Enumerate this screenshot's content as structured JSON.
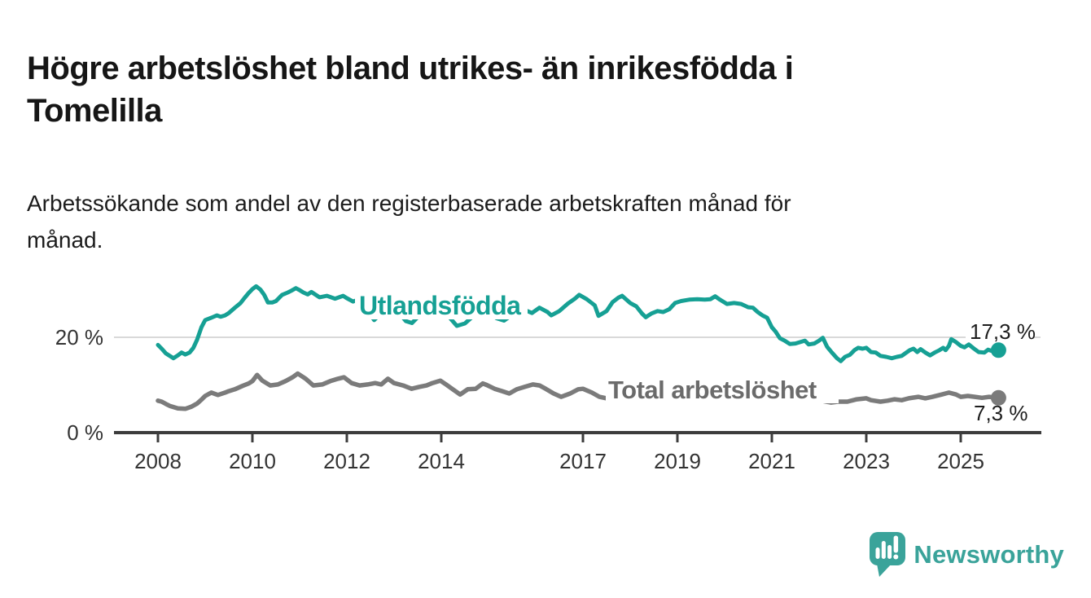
{
  "header": {
    "title_lines": [
      "Högre arbetslöshet bland utrikes- än inrikesfödda i",
      "Tomelilla"
    ],
    "subtitle_lines": [
      "Arbetssökande som andel av den registerbaserade arbetskraften månad för",
      "månad."
    ]
  },
  "chart_data": {
    "type": "line",
    "title": "Högre arbetslöshet bland utrikes- än inrikesfödda i Tomelilla",
    "subtitle": "Arbetssökande som andel av den registerbaserade arbetskraften månad för månad.",
    "unit": "%",
    "grid": "single-horizontal-gridline-at-20",
    "legend_position": "inline-labels-on-lines",
    "x_ticks": [
      "2008",
      "2010",
      "2012",
      "2014",
      "2017",
      "2019",
      "2021",
      "2023",
      "2025"
    ],
    "y_ticks": [
      {
        "v": 0,
        "label": "0 %"
      },
      {
        "v": 20,
        "label": "20 %"
      }
    ],
    "x_range": [
      2008.0,
      2025.8
    ],
    "ylim": [
      0,
      33
    ],
    "colors": {
      "axis": "#3c3c3c",
      "grid": "#d9d9d9",
      "tick_text": "#333333",
      "value_text": "#1d1d1d"
    },
    "series": [
      {
        "id": "utlandsfodda",
        "name": "Utlandsfödda",
        "color": "#16a094",
        "label_color": "#16a094",
        "end_value": 17.3,
        "end_label": "17,3 %",
        "points": [
          [
            2008.0,
            18.4
          ],
          [
            2008.08,
            17.6
          ],
          [
            2008.17,
            16.6
          ],
          [
            2008.33,
            15.6
          ],
          [
            2008.42,
            16.2
          ],
          [
            2008.5,
            16.8
          ],
          [
            2008.58,
            16.4
          ],
          [
            2008.67,
            16.8
          ],
          [
            2008.75,
            17.8
          ],
          [
            2008.83,
            19.5
          ],
          [
            2008.92,
            22.1
          ],
          [
            2009.0,
            23.6
          ],
          [
            2009.13,
            24.1
          ],
          [
            2009.25,
            24.6
          ],
          [
            2009.33,
            24.3
          ],
          [
            2009.42,
            24.6
          ],
          [
            2009.5,
            25.1
          ],
          [
            2009.63,
            26.2
          ],
          [
            2009.75,
            27.2
          ],
          [
            2009.83,
            28.2
          ],
          [
            2009.92,
            29.3
          ],
          [
            2010.0,
            30.1
          ],
          [
            2010.08,
            30.7
          ],
          [
            2010.17,
            30.0
          ],
          [
            2010.25,
            28.9
          ],
          [
            2010.33,
            27.3
          ],
          [
            2010.42,
            27.3
          ],
          [
            2010.5,
            27.6
          ],
          [
            2010.63,
            28.9
          ],
          [
            2010.75,
            29.4
          ],
          [
            2010.83,
            29.8
          ],
          [
            2010.92,
            30.3
          ],
          [
            2011.0,
            29.9
          ],
          [
            2011.08,
            29.4
          ],
          [
            2011.17,
            29.0
          ],
          [
            2011.25,
            29.5
          ],
          [
            2011.42,
            28.4
          ],
          [
            2011.58,
            28.7
          ],
          [
            2011.75,
            28.1
          ],
          [
            2011.92,
            28.7
          ],
          [
            2012.0,
            28.2
          ],
          [
            2012.13,
            27.5
          ],
          [
            2012.25,
            27.9
          ],
          [
            2012.42,
            25.8
          ],
          [
            2012.58,
            23.6
          ],
          [
            2012.75,
            25.3
          ],
          [
            2012.92,
            26.3
          ],
          [
            2013.08,
            25.4
          ],
          [
            2013.25,
            23.4
          ],
          [
            2013.38,
            23.0
          ],
          [
            2013.5,
            24.2
          ],
          [
            2013.67,
            25.6
          ],
          [
            2013.83,
            26.4
          ],
          [
            2014.0,
            26.0
          ],
          [
            2014.17,
            24.2
          ],
          [
            2014.33,
            22.4
          ],
          [
            2014.5,
            22.9
          ],
          [
            2014.67,
            24.4
          ],
          [
            2014.83,
            25.7
          ],
          [
            2015.0,
            25.2
          ],
          [
            2015.17,
            24.0
          ],
          [
            2015.33,
            23.5
          ],
          [
            2015.5,
            24.7
          ],
          [
            2015.63,
            25.4
          ],
          [
            2015.75,
            25.8
          ],
          [
            2015.92,
            25.1
          ],
          [
            2016.08,
            26.2
          ],
          [
            2016.25,
            25.3
          ],
          [
            2016.33,
            24.6
          ],
          [
            2016.5,
            25.5
          ],
          [
            2016.67,
            27.0
          ],
          [
            2016.83,
            28.1
          ],
          [
            2016.92,
            28.9
          ],
          [
            2017.08,
            28.0
          ],
          [
            2017.25,
            26.7
          ],
          [
            2017.33,
            24.5
          ],
          [
            2017.5,
            25.5
          ],
          [
            2017.63,
            27.4
          ],
          [
            2017.75,
            28.3
          ],
          [
            2017.83,
            28.7
          ],
          [
            2018.0,
            27.2
          ],
          [
            2018.13,
            26.5
          ],
          [
            2018.25,
            25.0
          ],
          [
            2018.33,
            24.2
          ],
          [
            2018.45,
            25.0
          ],
          [
            2018.58,
            25.5
          ],
          [
            2018.7,
            25.3
          ],
          [
            2018.83,
            25.9
          ],
          [
            2018.95,
            27.2
          ],
          [
            2019.08,
            27.6
          ],
          [
            2019.25,
            27.9
          ],
          [
            2019.42,
            28.0
          ],
          [
            2019.58,
            27.9
          ],
          [
            2019.7,
            28.0
          ],
          [
            2019.8,
            28.6
          ],
          [
            2019.9,
            27.9
          ],
          [
            2020.05,
            27.0
          ],
          [
            2020.2,
            27.2
          ],
          [
            2020.35,
            27.0
          ],
          [
            2020.5,
            26.3
          ],
          [
            2020.6,
            26.2
          ],
          [
            2020.7,
            25.3
          ],
          [
            2020.8,
            24.6
          ],
          [
            2020.9,
            24.1
          ],
          [
            2021.0,
            22.1
          ],
          [
            2021.08,
            21.2
          ],
          [
            2021.17,
            19.8
          ],
          [
            2021.27,
            19.3
          ],
          [
            2021.38,
            18.6
          ],
          [
            2021.5,
            18.7
          ],
          [
            2021.6,
            19.0
          ],
          [
            2021.7,
            19.3
          ],
          [
            2021.78,
            18.5
          ],
          [
            2021.9,
            18.7
          ],
          [
            2022.0,
            19.3
          ],
          [
            2022.08,
            19.9
          ],
          [
            2022.17,
            18.0
          ],
          [
            2022.27,
            16.8
          ],
          [
            2022.38,
            15.6
          ],
          [
            2022.46,
            15.0
          ],
          [
            2022.55,
            15.9
          ],
          [
            2022.65,
            16.3
          ],
          [
            2022.75,
            17.3
          ],
          [
            2022.83,
            17.8
          ],
          [
            2022.92,
            17.6
          ],
          [
            2023.0,
            17.8
          ],
          [
            2023.1,
            16.9
          ],
          [
            2023.2,
            16.8
          ],
          [
            2023.3,
            16.1
          ],
          [
            2023.42,
            15.9
          ],
          [
            2023.54,
            15.6
          ],
          [
            2023.65,
            15.9
          ],
          [
            2023.75,
            16.1
          ],
          [
            2023.85,
            16.8
          ],
          [
            2023.92,
            17.3
          ],
          [
            2024.0,
            17.6
          ],
          [
            2024.08,
            16.9
          ],
          [
            2024.15,
            17.5
          ],
          [
            2024.25,
            16.8
          ],
          [
            2024.35,
            16.2
          ],
          [
            2024.45,
            16.8
          ],
          [
            2024.55,
            17.3
          ],
          [
            2024.63,
            17.8
          ],
          [
            2024.68,
            17.3
          ],
          [
            2024.75,
            18.2
          ],
          [
            2024.8,
            19.6
          ],
          [
            2024.9,
            19.0
          ],
          [
            2025.0,
            18.2
          ],
          [
            2025.08,
            17.9
          ],
          [
            2025.17,
            18.5
          ],
          [
            2025.27,
            17.7
          ],
          [
            2025.38,
            16.9
          ],
          [
            2025.5,
            16.8
          ],
          [
            2025.58,
            17.4
          ],
          [
            2025.67,
            17.1
          ],
          [
            2025.8,
            17.3
          ]
        ]
      },
      {
        "id": "total",
        "name": "Total arbetslöshet",
        "color": "#7b7b7b",
        "label_color": "#6b6b6b",
        "end_value": 7.3,
        "end_label": "7,3 %",
        "points": [
          [
            2008.0,
            6.7
          ],
          [
            2008.08,
            6.5
          ],
          [
            2008.17,
            6.0
          ],
          [
            2008.25,
            5.6
          ],
          [
            2008.42,
            5.1
          ],
          [
            2008.58,
            5.0
          ],
          [
            2008.7,
            5.4
          ],
          [
            2008.83,
            6.1
          ],
          [
            2008.92,
            6.9
          ],
          [
            2009.0,
            7.7
          ],
          [
            2009.13,
            8.4
          ],
          [
            2009.27,
            7.9
          ],
          [
            2009.42,
            8.4
          ],
          [
            2009.5,
            8.7
          ],
          [
            2009.63,
            9.1
          ],
          [
            2009.79,
            9.8
          ],
          [
            2009.92,
            10.3
          ],
          [
            2010.0,
            10.8
          ],
          [
            2010.1,
            12.1
          ],
          [
            2010.21,
            10.9
          ],
          [
            2010.38,
            9.9
          ],
          [
            2010.54,
            10.1
          ],
          [
            2010.7,
            10.8
          ],
          [
            2010.85,
            11.6
          ],
          [
            2010.96,
            12.4
          ],
          [
            2011.13,
            11.3
          ],
          [
            2011.29,
            9.9
          ],
          [
            2011.48,
            10.1
          ],
          [
            2011.65,
            10.8
          ],
          [
            2011.81,
            11.3
          ],
          [
            2011.94,
            11.6
          ],
          [
            2012.1,
            10.4
          ],
          [
            2012.27,
            9.9
          ],
          [
            2012.44,
            10.1
          ],
          [
            2012.6,
            10.4
          ],
          [
            2012.73,
            10.1
          ],
          [
            2012.87,
            11.3
          ],
          [
            2013.0,
            10.4
          ],
          [
            2013.19,
            9.9
          ],
          [
            2013.37,
            9.2
          ],
          [
            2013.54,
            9.6
          ],
          [
            2013.69,
            9.9
          ],
          [
            2013.81,
            10.4
          ],
          [
            2013.98,
            10.9
          ],
          [
            2014.1,
            10.1
          ],
          [
            2014.23,
            9.2
          ],
          [
            2014.4,
            8.0
          ],
          [
            2014.56,
            9.1
          ],
          [
            2014.73,
            9.2
          ],
          [
            2014.88,
            10.3
          ],
          [
            2014.96,
            10.0
          ],
          [
            2015.13,
            9.2
          ],
          [
            2015.29,
            8.7
          ],
          [
            2015.44,
            8.2
          ],
          [
            2015.6,
            9.1
          ],
          [
            2015.77,
            9.6
          ],
          [
            2015.94,
            10.1
          ],
          [
            2016.08,
            9.9
          ],
          [
            2016.21,
            9.2
          ],
          [
            2016.38,
            8.2
          ],
          [
            2016.54,
            7.5
          ],
          [
            2016.73,
            8.2
          ],
          [
            2016.9,
            9.1
          ],
          [
            2017.0,
            9.2
          ],
          [
            2017.19,
            8.4
          ],
          [
            2017.35,
            7.5
          ],
          [
            2017.5,
            7.2
          ],
          [
            2017.67,
            7.5
          ],
          [
            2017.83,
            7.9
          ],
          [
            2018.0,
            8.1
          ],
          [
            2018.2,
            7.6
          ],
          [
            2018.4,
            7.2
          ],
          [
            2018.6,
            7.4
          ],
          [
            2018.8,
            7.7
          ],
          [
            2019.0,
            7.9
          ],
          [
            2019.2,
            7.4
          ],
          [
            2019.4,
            7.1
          ],
          [
            2019.6,
            7.3
          ],
          [
            2019.8,
            7.6
          ],
          [
            2020.0,
            7.9
          ],
          [
            2020.25,
            8.8
          ],
          [
            2020.45,
            9.3
          ],
          [
            2020.6,
            9.1
          ],
          [
            2020.8,
            8.9
          ],
          [
            2021.0,
            9.0
          ],
          [
            2021.2,
            8.6
          ],
          [
            2021.4,
            8.2
          ],
          [
            2021.6,
            7.8
          ],
          [
            2021.8,
            7.4
          ],
          [
            2021.95,
            7.1
          ],
          [
            2022.1,
            6.6
          ],
          [
            2022.25,
            6.3
          ],
          [
            2022.4,
            6.5
          ],
          [
            2022.6,
            6.5
          ],
          [
            2022.8,
            7.0
          ],
          [
            2023.0,
            7.2
          ],
          [
            2023.1,
            6.8
          ],
          [
            2023.3,
            6.5
          ],
          [
            2023.45,
            6.7
          ],
          [
            2023.6,
            7.0
          ],
          [
            2023.75,
            6.8
          ],
          [
            2023.9,
            7.2
          ],
          [
            2024.1,
            7.5
          ],
          [
            2024.25,
            7.2
          ],
          [
            2024.4,
            7.5
          ],
          [
            2024.6,
            8.0
          ],
          [
            2024.75,
            8.4
          ],
          [
            2024.9,
            8.0
          ],
          [
            2025.0,
            7.5
          ],
          [
            2025.15,
            7.7
          ],
          [
            2025.3,
            7.5
          ],
          [
            2025.45,
            7.3
          ],
          [
            2025.6,
            7.5
          ],
          [
            2025.8,
            7.3
          ]
        ]
      }
    ]
  },
  "footer": {
    "brand": "Newsworthy",
    "brand_color": "#3aa39a"
  }
}
